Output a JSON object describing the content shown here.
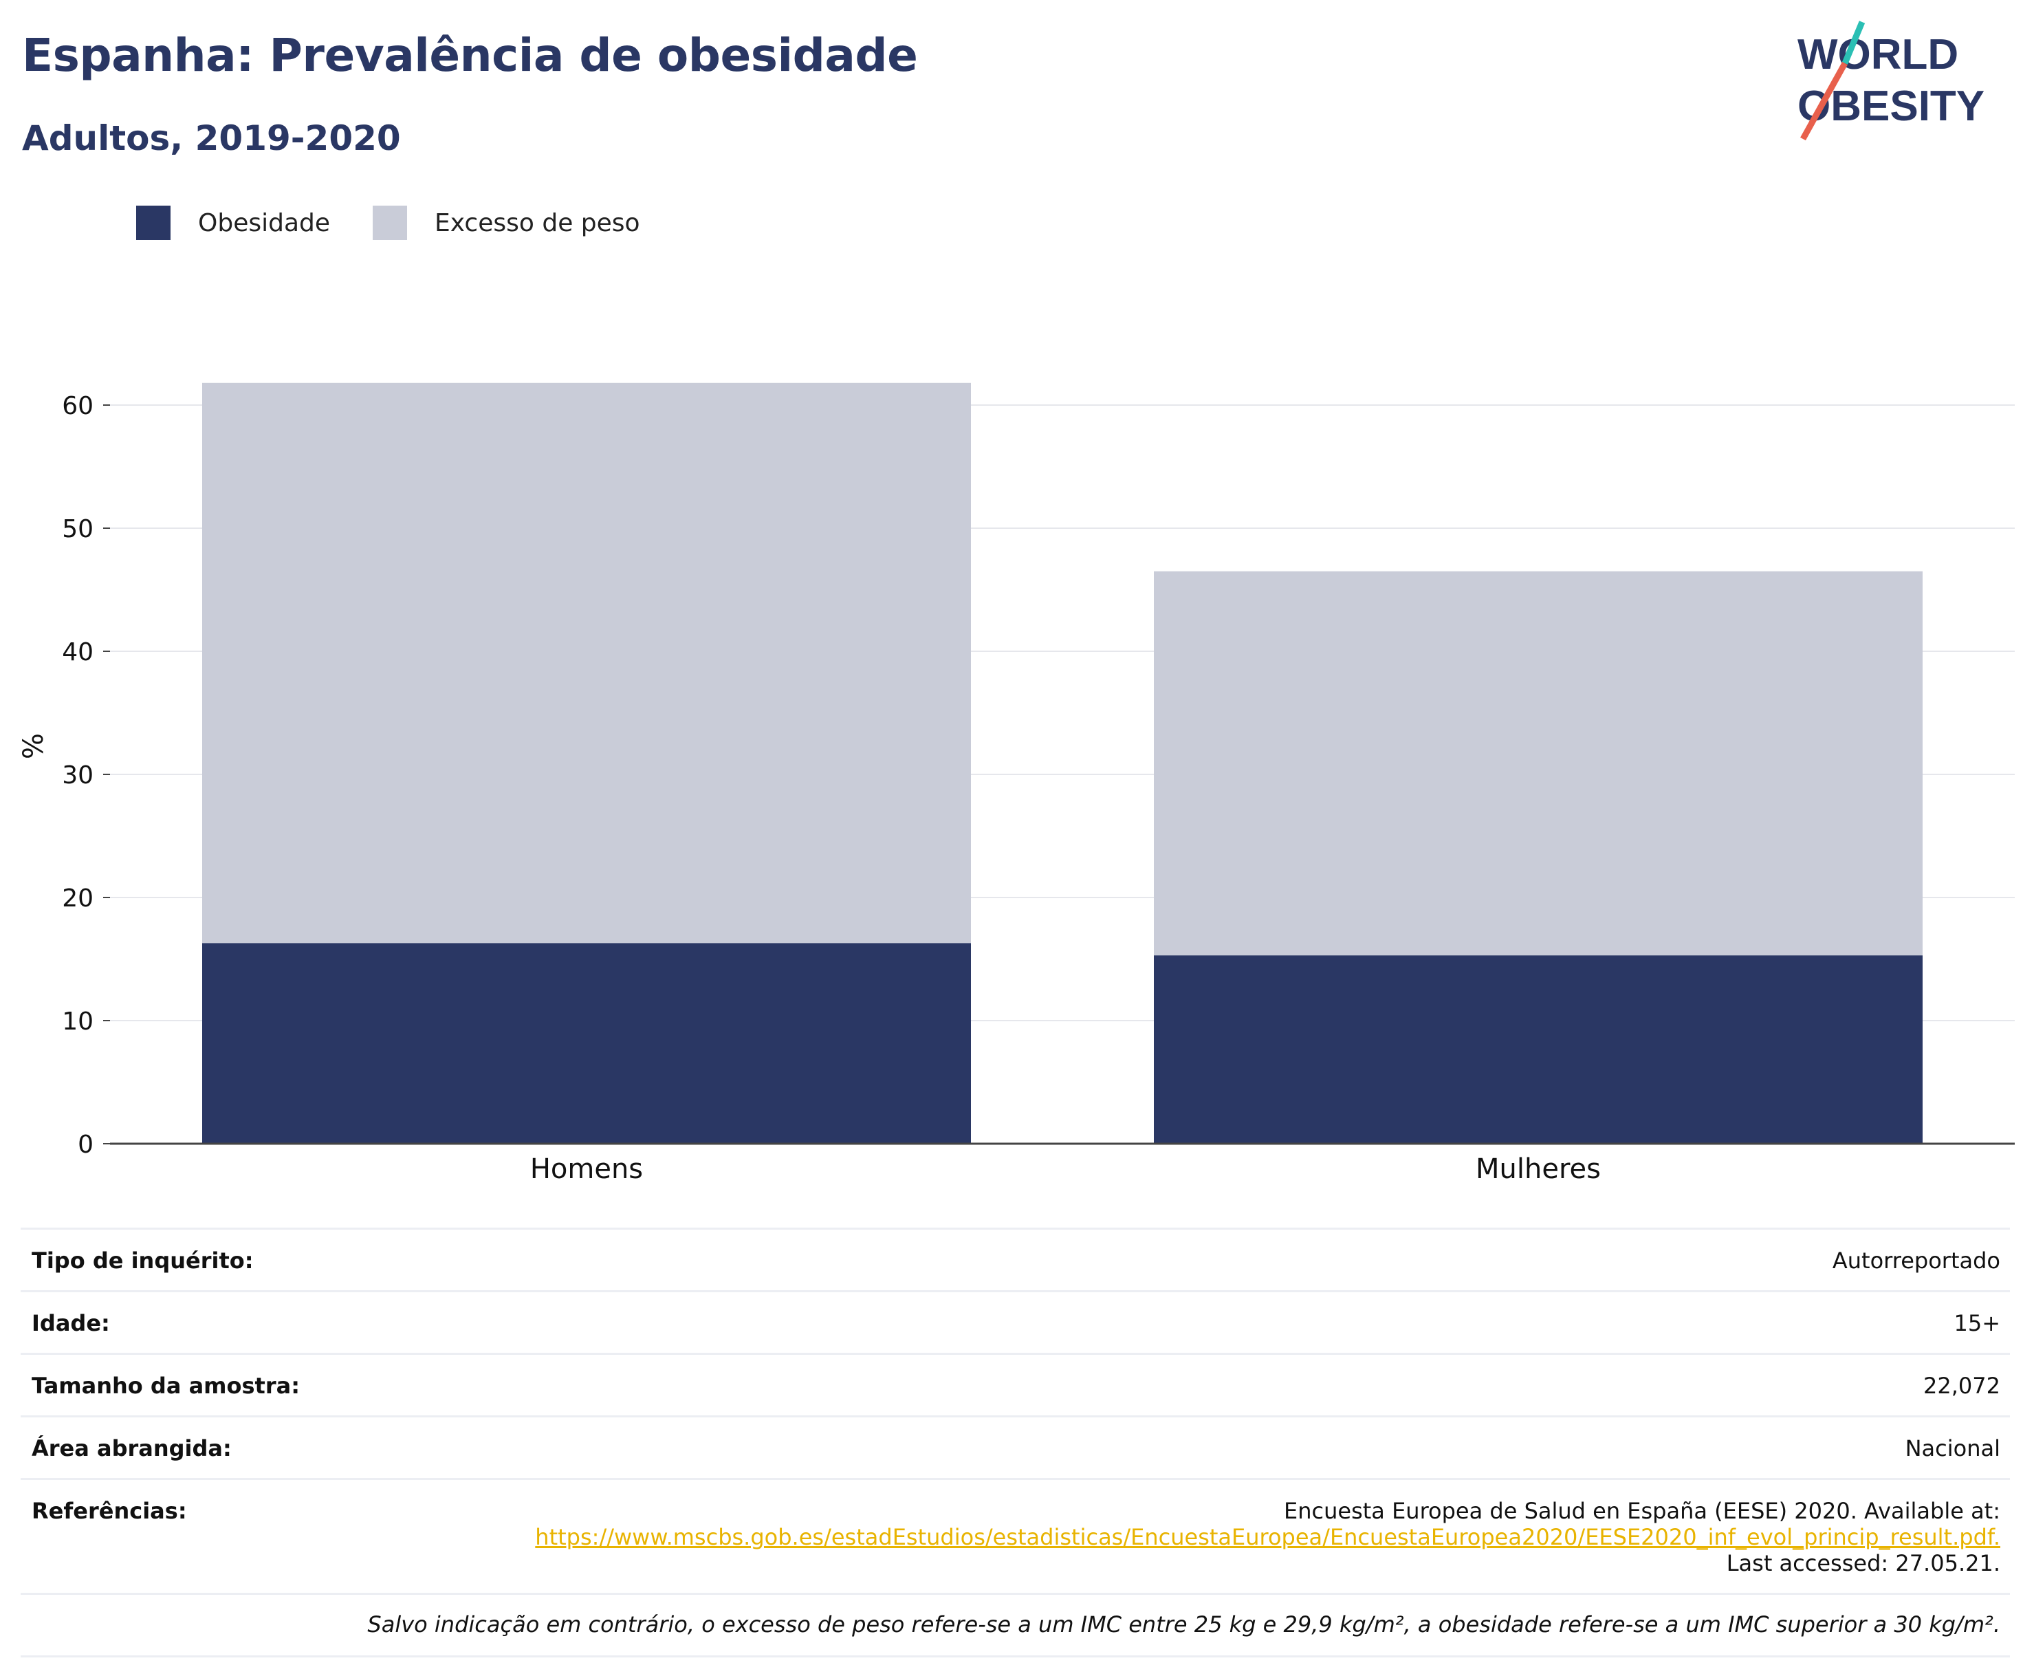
{
  "header": {
    "title": "Espanha: Prevalência de obesidade",
    "subtitle": "Adultos, 2019-2020"
  },
  "logo": {
    "line1": "WORLD",
    "line2": "OBESITY"
  },
  "colors": {
    "obesity": "#2a3764",
    "overweight": "#c9ccd8",
    "title": "#2a3764",
    "link": "#e8b300",
    "accent_teal": "#2bbfb4",
    "accent_red": "#e8604c"
  },
  "chart_data": {
    "type": "bar",
    "stacked": true,
    "categories": [
      "Homens",
      "Mulheres"
    ],
    "series": [
      {
        "name": "Obesidade",
        "values": [
          16.3,
          15.3
        ]
      },
      {
        "name": "Excesso de peso",
        "values": [
          45.5,
          31.2
        ]
      }
    ],
    "ylabel": "%",
    "xlabel": "",
    "ylim": [
      0,
      65
    ],
    "yticks": [
      0,
      10,
      20,
      30,
      40,
      50,
      60
    ],
    "grid": true,
    "legend": "top-left"
  },
  "info": {
    "rows": [
      {
        "label": "Tipo de inquérito:",
        "value": "Autorreportado"
      },
      {
        "label": "Idade:",
        "value": "15+"
      },
      {
        "label": "Tamanho da amostra:",
        "value": "22,072"
      },
      {
        "label": "Área abrangida:",
        "value": "Nacional"
      }
    ],
    "references": {
      "label": "Referências:",
      "text": "Encuesta Europea de Salud en España (EESE) 2020. Available at:",
      "url": "https://www.mscbs.gob.es/estadEstudios/estadisticas/EncuestaEuropea/EncuestaEuropea2020/EESE2020_inf_evol_princip_result.pdf.",
      "accessed": "Last accessed: 27.05.21."
    },
    "footnote": "Salvo indicação em contrário, o excesso de peso refere-se a um IMC entre 25 kg e 29,9 kg/m², a obesidade refere-se a um IMC superior a 30 kg/m²."
  }
}
